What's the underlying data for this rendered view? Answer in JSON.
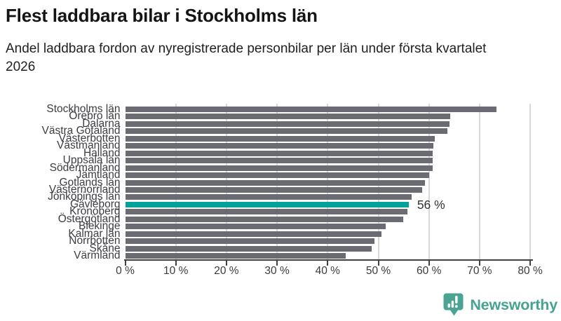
{
  "header": {
    "title": "Flest laddbara bilar i Stockholms län",
    "subtitle": "Andel laddbara fordon av nyregistrerade personbilar per län under första kvartalet 2026"
  },
  "chart_data": {
    "type": "bar",
    "orientation": "horizontal",
    "title": "Flest laddbara bilar i Stockholms län",
    "subtitle": "Andel laddbara fordon av nyregistrerade personbilar per län under första kvartalet 2026",
    "categories": [
      "Stockholms län",
      "Örebro län",
      "Dalarna",
      "Västra Götaland",
      "Västerbotten",
      "Västmanland",
      "Halland",
      "Uppsala län",
      "Södermanland",
      "Jämtland",
      "Gotlands län",
      "Västernorrland",
      "Jönköpings län",
      "Gävleborg",
      "Kronoberg",
      "Östergötland",
      "Blekinge",
      "Kalmar län",
      "Norrbotten",
      "Skåne",
      "Värmland"
    ],
    "values": [
      73.3,
      64.2,
      64.0,
      63.7,
      61.1,
      60.9,
      60.7,
      60.7,
      60.7,
      60.1,
      59.2,
      58.7,
      56.6,
      56.0,
      55.7,
      54.9,
      51.4,
      50.6,
      49.2,
      48.7,
      43.5
    ],
    "unit": "%",
    "xlabel": "",
    "ylabel": "",
    "xlim": [
      0,
      80
    ],
    "x_tick_values": [
      0,
      10,
      20,
      30,
      40,
      50,
      60,
      70,
      80
    ],
    "x_tick_labels": [
      "0 %",
      "10 %",
      "20 %",
      "30 %",
      "40 %",
      "50 %",
      "60 %",
      "70 %",
      "80 %"
    ],
    "grid": "vertical-only",
    "legend": "none",
    "highlight": {
      "category": "Gävleborg",
      "index": 13,
      "label": "56 %"
    },
    "colors": {
      "bar": "#6b6b73",
      "highlight_bar": "#00a39a",
      "gridline": "#d9d9db",
      "axis": "#404040"
    }
  },
  "footer": {
    "brand": "Newsworthy",
    "brand_color": "#46a392",
    "logo_icon": "newsworthy-bar-chart-bubble-icon"
  }
}
